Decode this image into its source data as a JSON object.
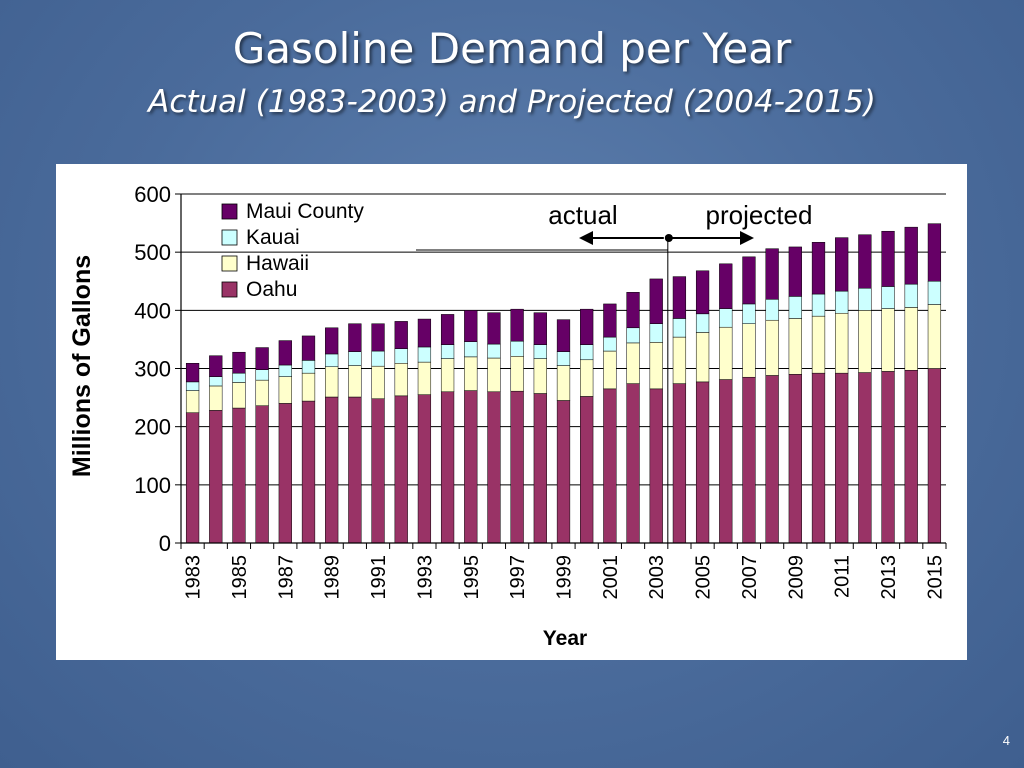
{
  "slide": {
    "title": "Gasoline Demand per Year",
    "subtitle": "Actual (1983-2003) and Projected (2004-2015)",
    "page_number": "4"
  },
  "chart_data": {
    "type": "bar",
    "stacked": true,
    "xlabel": "Year",
    "ylabel": "Millions of Gallons",
    "ylim": [
      0,
      600
    ],
    "yticks": [
      0,
      100,
      200,
      300,
      400,
      500,
      600
    ],
    "categories": [
      1983,
      1984,
      1985,
      1986,
      1987,
      1988,
      1989,
      1990,
      1991,
      1992,
      1993,
      1994,
      1995,
      1996,
      1997,
      1998,
      1999,
      2000,
      2001,
      2002,
      2003,
      2004,
      2005,
      2006,
      2007,
      2008,
      2009,
      2010,
      2011,
      2012,
      2013,
      2014,
      2015
    ],
    "tick_labels": [
      "1983",
      "1985",
      "1987",
      "1989",
      "1991",
      "1993",
      "1995",
      "1997",
      "1999",
      "2001",
      "2003",
      "2005",
      "2007",
      "2009",
      "2011",
      "2013",
      "2015"
    ],
    "series": [
      {
        "name": "Oahu",
        "color": "#993366",
        "values": [
          224,
          228,
          232,
          236,
          240,
          244,
          251,
          251,
          248,
          253,
          255,
          260,
          262,
          260,
          261,
          257,
          245,
          252,
          265,
          274,
          265,
          274,
          277,
          281,
          285,
          288,
          290,
          292,
          292,
          293,
          295,
          297,
          300
        ]
      },
      {
        "name": "Hawaii",
        "color": "#FFFFCC",
        "values": [
          38,
          42,
          44,
          44,
          46,
          48,
          52,
          54,
          56,
          56,
          56,
          57,
          58,
          58,
          60,
          60,
          60,
          63,
          65,
          70,
          80,
          80,
          85,
          90,
          92,
          95,
          96,
          98,
          103,
          107,
          108,
          108,
          110
        ]
      },
      {
        "name": "Kauai",
        "color": "#CCFFFF",
        "values": [
          15,
          16,
          16,
          18,
          20,
          22,
          22,
          24,
          26,
          25,
          26,
          24,
          26,
          24,
          26,
          24,
          24,
          26,
          24,
          26,
          32,
          32,
          32,
          32,
          34,
          36,
          38,
          38,
          38,
          38,
          38,
          40,
          40
        ]
      },
      {
        "name": "Maui County",
        "color": "#660066",
        "values": [
          32,
          36,
          36,
          38,
          42,
          42,
          45,
          48,
          47,
          47,
          48,
          52,
          54,
          54,
          55,
          55,
          55,
          61,
          57,
          61,
          77,
          72,
          74,
          77,
          81,
          87,
          85,
          89,
          92,
          92,
          95,
          98,
          99
        ]
      }
    ],
    "legend": [
      "Maui County",
      "Kauai",
      "Hawaii",
      "Oahu"
    ],
    "legend_position": "top-left",
    "annotations": {
      "actual": "actual",
      "projected": "projected",
      "divider_after": 2003
    },
    "grid": "horizontal"
  }
}
